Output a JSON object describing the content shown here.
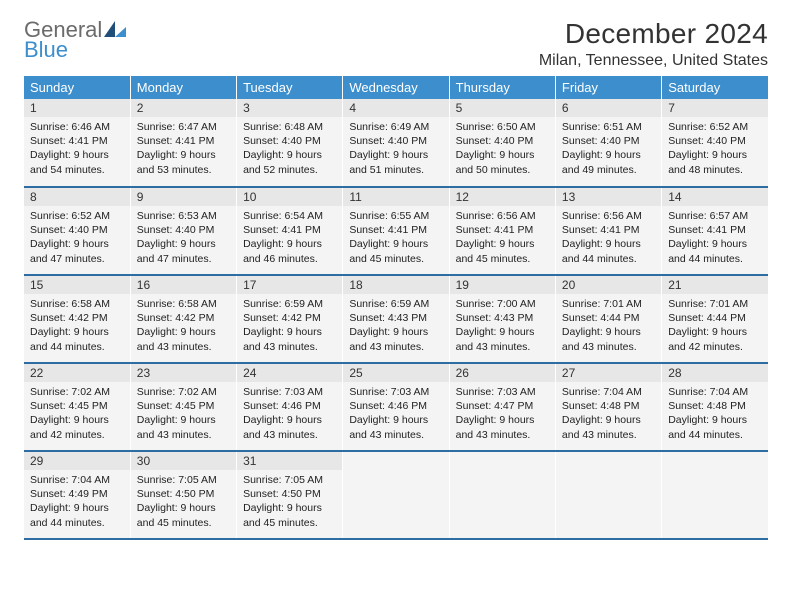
{
  "logo": {
    "word1": "General",
    "word2": "Blue"
  },
  "header": {
    "month_title": "December 2024",
    "location": "Milan, Tennessee, United States"
  },
  "colors": {
    "header_bg": "#3c8ecd",
    "header_text": "#ffffff",
    "daynum_bg": "#e7e7e7",
    "cell_bg": "#f4f4f4",
    "row_divider": "#2e6da4",
    "logo_gray": "#6b6b6b",
    "logo_blue": "#3c8ecd"
  },
  "weekdays": [
    "Sunday",
    "Monday",
    "Tuesday",
    "Wednesday",
    "Thursday",
    "Friday",
    "Saturday"
  ],
  "weeks": [
    [
      {
        "n": "1",
        "sr": "6:46 AM",
        "ss": "4:41 PM",
        "dlh": "9",
        "dlm": "54"
      },
      {
        "n": "2",
        "sr": "6:47 AM",
        "ss": "4:41 PM",
        "dlh": "9",
        "dlm": "53"
      },
      {
        "n": "3",
        "sr": "6:48 AM",
        "ss": "4:40 PM",
        "dlh": "9",
        "dlm": "52"
      },
      {
        "n": "4",
        "sr": "6:49 AM",
        "ss": "4:40 PM",
        "dlh": "9",
        "dlm": "51"
      },
      {
        "n": "5",
        "sr": "6:50 AM",
        "ss": "4:40 PM",
        "dlh": "9",
        "dlm": "50"
      },
      {
        "n": "6",
        "sr": "6:51 AM",
        "ss": "4:40 PM",
        "dlh": "9",
        "dlm": "49"
      },
      {
        "n": "7",
        "sr": "6:52 AM",
        "ss": "4:40 PM",
        "dlh": "9",
        "dlm": "48"
      }
    ],
    [
      {
        "n": "8",
        "sr": "6:52 AM",
        "ss": "4:40 PM",
        "dlh": "9",
        "dlm": "47"
      },
      {
        "n": "9",
        "sr": "6:53 AM",
        "ss": "4:40 PM",
        "dlh": "9",
        "dlm": "47"
      },
      {
        "n": "10",
        "sr": "6:54 AM",
        "ss": "4:41 PM",
        "dlh": "9",
        "dlm": "46"
      },
      {
        "n": "11",
        "sr": "6:55 AM",
        "ss": "4:41 PM",
        "dlh": "9",
        "dlm": "45"
      },
      {
        "n": "12",
        "sr": "6:56 AM",
        "ss": "4:41 PM",
        "dlh": "9",
        "dlm": "45"
      },
      {
        "n": "13",
        "sr": "6:56 AM",
        "ss": "4:41 PM",
        "dlh": "9",
        "dlm": "44"
      },
      {
        "n": "14",
        "sr": "6:57 AM",
        "ss": "4:41 PM",
        "dlh": "9",
        "dlm": "44"
      }
    ],
    [
      {
        "n": "15",
        "sr": "6:58 AM",
        "ss": "4:42 PM",
        "dlh": "9",
        "dlm": "44"
      },
      {
        "n": "16",
        "sr": "6:58 AM",
        "ss": "4:42 PM",
        "dlh": "9",
        "dlm": "43"
      },
      {
        "n": "17",
        "sr": "6:59 AM",
        "ss": "4:42 PM",
        "dlh": "9",
        "dlm": "43"
      },
      {
        "n": "18",
        "sr": "6:59 AM",
        "ss": "4:43 PM",
        "dlh": "9",
        "dlm": "43"
      },
      {
        "n": "19",
        "sr": "7:00 AM",
        "ss": "4:43 PM",
        "dlh": "9",
        "dlm": "43"
      },
      {
        "n": "20",
        "sr": "7:01 AM",
        "ss": "4:44 PM",
        "dlh": "9",
        "dlm": "43"
      },
      {
        "n": "21",
        "sr": "7:01 AM",
        "ss": "4:44 PM",
        "dlh": "9",
        "dlm": "42"
      }
    ],
    [
      {
        "n": "22",
        "sr": "7:02 AM",
        "ss": "4:45 PM",
        "dlh": "9",
        "dlm": "42"
      },
      {
        "n": "23",
        "sr": "7:02 AM",
        "ss": "4:45 PM",
        "dlh": "9",
        "dlm": "43"
      },
      {
        "n": "24",
        "sr": "7:03 AM",
        "ss": "4:46 PM",
        "dlh": "9",
        "dlm": "43"
      },
      {
        "n": "25",
        "sr": "7:03 AM",
        "ss": "4:46 PM",
        "dlh": "9",
        "dlm": "43"
      },
      {
        "n": "26",
        "sr": "7:03 AM",
        "ss": "4:47 PM",
        "dlh": "9",
        "dlm": "43"
      },
      {
        "n": "27",
        "sr": "7:04 AM",
        "ss": "4:48 PM",
        "dlh": "9",
        "dlm": "43"
      },
      {
        "n": "28",
        "sr": "7:04 AM",
        "ss": "4:48 PM",
        "dlh": "9",
        "dlm": "44"
      }
    ],
    [
      {
        "n": "29",
        "sr": "7:04 AM",
        "ss": "4:49 PM",
        "dlh": "9",
        "dlm": "44"
      },
      {
        "n": "30",
        "sr": "7:05 AM",
        "ss": "4:50 PM",
        "dlh": "9",
        "dlm": "45"
      },
      {
        "n": "31",
        "sr": "7:05 AM",
        "ss": "4:50 PM",
        "dlh": "9",
        "dlm": "45"
      },
      {
        "empty": true
      },
      {
        "empty": true
      },
      {
        "empty": true
      },
      {
        "empty": true
      }
    ]
  ],
  "labels": {
    "sunrise": "Sunrise:",
    "sunset": "Sunset:",
    "daylight_prefix": "Daylight:",
    "hours_word": "hours",
    "and_word": "and",
    "minutes_word": "minutes."
  }
}
